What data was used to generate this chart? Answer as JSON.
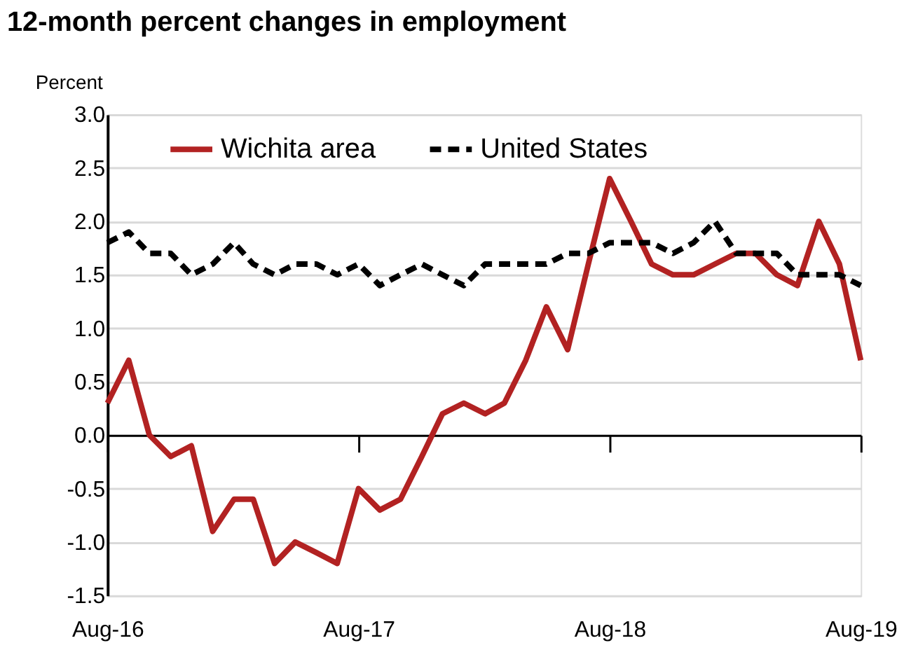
{
  "chart_data": {
    "type": "line",
    "title": "12-month percent changes in employment",
    "ylabel": "Percent",
    "x": [
      "2016-08",
      "2016-09",
      "2016-10",
      "2016-11",
      "2016-12",
      "2017-01",
      "2017-02",
      "2017-03",
      "2017-04",
      "2017-05",
      "2017-06",
      "2017-07",
      "2017-08",
      "2017-09",
      "2017-10",
      "2017-11",
      "2017-12",
      "2018-01",
      "2018-02",
      "2018-03",
      "2018-04",
      "2018-05",
      "2018-06",
      "2018-07",
      "2018-08",
      "2018-09",
      "2018-10",
      "2018-11",
      "2018-12",
      "2019-01",
      "2019-02",
      "2019-03",
      "2019-04",
      "2019-05",
      "2019-06",
      "2019-07",
      "2019-08"
    ],
    "series": [
      {
        "name": "Wichita area",
        "color": "#b22222",
        "line_style": "solid",
        "values": [
          0.3,
          0.7,
          0.0,
          -0.2,
          -0.1,
          -0.9,
          -0.6,
          -0.6,
          -1.2,
          -1.0,
          -1.1,
          -1.2,
          -0.5,
          -0.7,
          -0.6,
          -0.2,
          0.2,
          0.3,
          0.2,
          0.3,
          0.7,
          1.2,
          0.8,
          1.6,
          2.4,
          2.0,
          1.6,
          1.5,
          1.5,
          1.6,
          1.7,
          1.7,
          1.5,
          1.4,
          2.0,
          1.6,
          0.7
        ]
      },
      {
        "name": "United States",
        "color": "#000000",
        "line_style": "dashed",
        "values": [
          1.8,
          1.9,
          1.7,
          1.7,
          1.5,
          1.6,
          1.8,
          1.6,
          1.5,
          1.6,
          1.6,
          1.5,
          1.6,
          1.4,
          1.5,
          1.6,
          1.5,
          1.4,
          1.6,
          1.6,
          1.6,
          1.6,
          1.7,
          1.7,
          1.8,
          1.8,
          1.8,
          1.7,
          1.8,
          2.0,
          1.7,
          1.7,
          1.7,
          1.5,
          1.5,
          1.5,
          1.4
        ]
      }
    ],
    "xlim": [
      "2016-08",
      "2019-08"
    ],
    "xticks": [
      {
        "value": "2016-08",
        "label": "Aug-16"
      },
      {
        "value": "2017-08",
        "label": "Aug-17"
      },
      {
        "value": "2018-08",
        "label": "Aug-18"
      },
      {
        "value": "2019-08",
        "label": "Aug-19"
      }
    ],
    "ylim": [
      -1.5,
      3.0
    ],
    "yticks": [
      {
        "value": -1.5,
        "label": "-1.5"
      },
      {
        "value": -1.0,
        "label": "-1.0"
      },
      {
        "value": -0.5,
        "label": "-0.5"
      },
      {
        "value": 0,
        "label": "0.0"
      },
      {
        "value": 0.5,
        "label": "0.5"
      },
      {
        "value": 1.0,
        "label": "1.0"
      },
      {
        "value": 1.5,
        "label": "1.5"
      },
      {
        "value": 2.0,
        "label": "2.0"
      },
      {
        "value": 2.5,
        "label": "2.5"
      },
      {
        "value": 3.0,
        "label": "3.0"
      }
    ],
    "grid": "y",
    "legend": "top",
    "marker": "none"
  }
}
